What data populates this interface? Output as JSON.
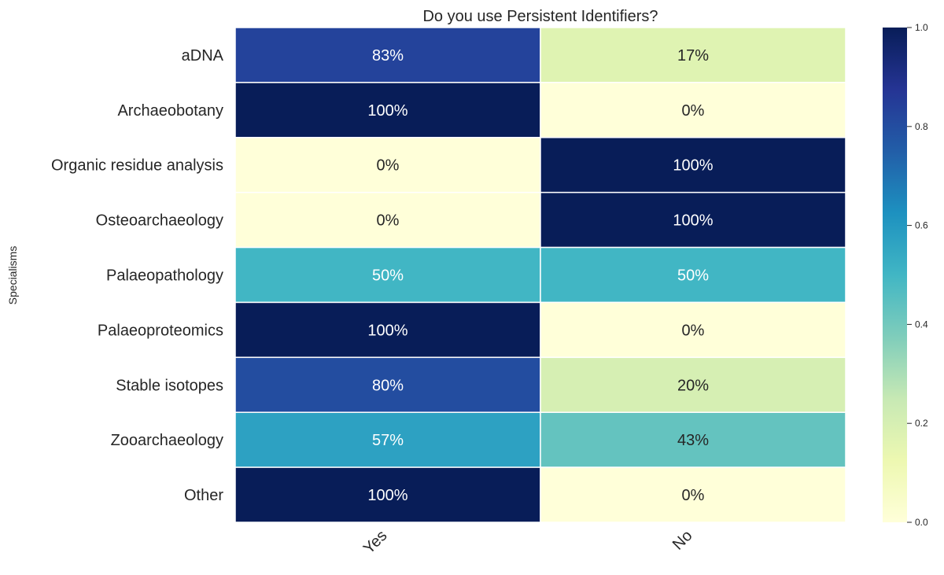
{
  "chart_data": {
    "type": "heatmap",
    "title": "Do you use Persistent Identifiers?",
    "ylabel": "Specialisms",
    "xlabel": "",
    "columns": [
      "Yes",
      "No"
    ],
    "rows": [
      "aDNA",
      "Archaeobotany",
      "Organic residue analysis",
      "Osteoarchaeology",
      "Palaeopathology",
      "Palaeoproteomics",
      "Stable isotopes",
      "Zooarchaeology",
      "Other"
    ],
    "values": [
      [
        0.83,
        0.17
      ],
      [
        1.0,
        0.0
      ],
      [
        0.0,
        1.0
      ],
      [
        0.0,
        1.0
      ],
      [
        0.5,
        0.5
      ],
      [
        1.0,
        0.0
      ],
      [
        0.8,
        0.2
      ],
      [
        0.57,
        0.43
      ],
      [
        1.0,
        0.0
      ]
    ],
    "annotations": [
      [
        "83%",
        "17%"
      ],
      [
        "100%",
        "0%"
      ],
      [
        "0%",
        "100%"
      ],
      [
        "0%",
        "100%"
      ],
      [
        "50%",
        "50%"
      ],
      [
        "100%",
        "0%"
      ],
      [
        "80%",
        "20%"
      ],
      [
        "57%",
        "43%"
      ],
      [
        "100%",
        "0%"
      ]
    ],
    "colormap": "YlGnBu",
    "colormap_stops": [
      "#ffffd9",
      "#edf8b1",
      "#c7e9b4",
      "#7fcdbb",
      "#41b6c4",
      "#1d91c0",
      "#225ea8",
      "#253494",
      "#081d58"
    ],
    "vmin": 0.0,
    "vmax": 1.0,
    "colorbar_ticks": [
      "0.0",
      "0.2",
      "0.4",
      "0.6",
      "0.8",
      "1.0"
    ],
    "grid_line_color": "#ffffff"
  }
}
